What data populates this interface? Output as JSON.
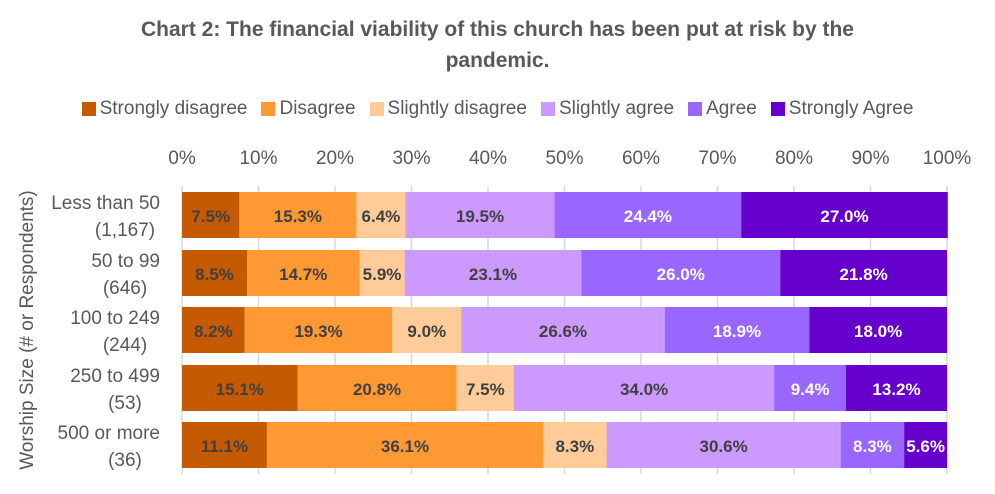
{
  "chart_data": {
    "type": "bar",
    "orientation": "horizontal",
    "stacked": "percent",
    "title_lines": [
      "Chart 2: The financial viability of this church has been put at risk by the",
      "pandemic."
    ],
    "xlabel": "",
    "ylabel": "Worship Size (# or Respondents)",
    "xlim": [
      0,
      100
    ],
    "x_ticks": [
      "0%",
      "10%",
      "20%",
      "30%",
      "40%",
      "50%",
      "60%",
      "70%",
      "80%",
      "90%",
      "100%"
    ],
    "grid": true,
    "legend_position": "top",
    "categories": [
      {
        "line1": "Less than 50",
        "line2": "(1,167)"
      },
      {
        "line1": "50 to 99",
        "line2": "(646)"
      },
      {
        "line1": "100 to 249",
        "line2": "(244)"
      },
      {
        "line1": "250 to 499",
        "line2": "(53)"
      },
      {
        "line1": "500 or more",
        "line2": "(36)"
      }
    ],
    "series": [
      {
        "name": "Strongly disagree",
        "color": "#C55A00",
        "label_color": "#404040",
        "values": [
          7.5,
          8.5,
          8.2,
          15.1,
          11.1
        ]
      },
      {
        "name": "Disagree",
        "color": "#FF9933",
        "label_color": "#404040",
        "values": [
          15.3,
          14.7,
          19.3,
          20.8,
          36.1
        ]
      },
      {
        "name": "Slightly disagree",
        "color": "#FFCC99",
        "label_color": "#404040",
        "values": [
          6.4,
          5.9,
          9.0,
          7.5,
          8.3
        ]
      },
      {
        "name": "Slightly agree",
        "color": "#CC99FF",
        "label_color": "#404040",
        "values": [
          19.5,
          23.1,
          26.6,
          34.0,
          30.6
        ]
      },
      {
        "name": "Agree",
        "color": "#9966FF",
        "label_color": "#FFFFFF",
        "values": [
          24.4,
          26.0,
          18.9,
          9.4,
          8.3
        ]
      },
      {
        "name": "Strongly Agree",
        "color": "#6600CC",
        "label_color": "#FFFFFF",
        "values": [
          27.0,
          21.8,
          18.0,
          13.2,
          5.6
        ]
      }
    ]
  }
}
